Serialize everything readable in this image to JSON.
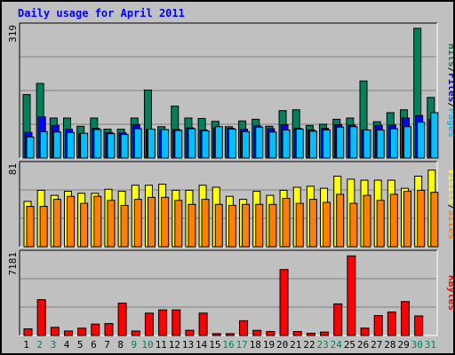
{
  "title": "Daily usage for April 2011",
  "colors": {
    "hits": "#00805c",
    "files": "#0000ff",
    "pages": "#00c0ff",
    "visits": "#ffff00",
    "sites": "#ff8000",
    "kbytes": "#ff0000",
    "weekday": "#000000",
    "weekend": "#00805c"
  },
  "chart_data": [
    {
      "type": "bar",
      "panel": "hits-files-pages",
      "ymax_label": "319",
      "ylim": [
        0,
        319
      ],
      "categories": [
        "1",
        "2",
        "3",
        "4",
        "5",
        "6",
        "7",
        "8",
        "9",
        "10",
        "11",
        "12",
        "13",
        "14",
        "15",
        "16",
        "17",
        "18",
        "19",
        "20",
        "21",
        "22",
        "23",
        "24",
        "25",
        "26",
        "27",
        "28",
        "29",
        "30",
        "31"
      ],
      "weekend_days": [
        "2",
        "3",
        "9",
        "10",
        "16",
        "17",
        "23",
        "24",
        "30",
        "31"
      ],
      "series": [
        {
          "name": "Hits",
          "values": [
            154,
            181,
            97,
            97,
            77,
            97,
            70,
            70,
            97,
            165,
            76,
            126,
            97,
            96,
            89,
            76,
            90,
            94,
            77,
            115,
            117,
            79,
            82,
            94,
            97,
            187,
            88,
            110,
            117,
            315,
            147
          ]
        },
        {
          "name": "Files",
          "values": [
            62,
            100,
            79,
            70,
            59,
            72,
            62,
            61,
            81,
            70,
            69,
            69,
            73,
            68,
            73,
            72,
            70,
            78,
            71,
            81,
            72,
            68,
            72,
            81,
            80,
            68,
            79,
            80,
            97,
            103,
            94
          ]
        },
        {
          "name": "Pages",
          "values": [
            51,
            64,
            63,
            62,
            60,
            69,
            59,
            57,
            71,
            70,
            69,
            67,
            71,
            66,
            76,
            70,
            64,
            75,
            63,
            68,
            70,
            65,
            68,
            75,
            76,
            68,
            68,
            71,
            76,
            87,
            110
          ]
        }
      ],
      "vlabel": [
        "Pages",
        "Files",
        "Hits"
      ]
    },
    {
      "type": "bar",
      "panel": "visits-sites",
      "ymax_label": "81",
      "ylim": [
        0,
        81
      ],
      "categories": [
        "1",
        "2",
        "3",
        "4",
        "5",
        "6",
        "7",
        "8",
        "9",
        "10",
        "11",
        "12",
        "13",
        "14",
        "15",
        "16",
        "17",
        "18",
        "19",
        "20",
        "21",
        "22",
        "23",
        "24",
        "25",
        "26",
        "27",
        "28",
        "29",
        "30",
        "31"
      ],
      "series": [
        {
          "name": "Visits",
          "values": [
            45,
            56,
            51,
            55,
            53,
            53,
            57,
            55,
            61,
            61,
            62,
            56,
            56,
            61,
            59,
            50,
            47,
            55,
            51,
            56,
            59,
            60,
            58,
            70,
            67,
            66,
            66,
            66,
            58,
            70,
            76
          ]
        },
        {
          "name": "Sites",
          "values": [
            40,
            40,
            47,
            50,
            43,
            50,
            46,
            41,
            47,
            49,
            49,
            46,
            42,
            47,
            42,
            41,
            42,
            42,
            42,
            48,
            43,
            47,
            44,
            52,
            43,
            51,
            46,
            52,
            55,
            56,
            54
          ]
        }
      ],
      "vlabel": [
        "Sites",
        "Visits"
      ]
    },
    {
      "type": "bar",
      "panel": "kbytes",
      "ymax_label": "7181",
      "ylim": [
        0,
        7181
      ],
      "categories": [
        "1",
        "2",
        "3",
        "4",
        "5",
        "6",
        "7",
        "8",
        "9",
        "10",
        "11",
        "12",
        "13",
        "14",
        "15",
        "16",
        "17",
        "18",
        "19",
        "20",
        "21",
        "22",
        "23",
        "24",
        "25",
        "26",
        "27",
        "28",
        "29",
        "30",
        "31"
      ],
      "series": [
        {
          "name": "KBytes",
          "values": [
            586,
            3150,
            719,
            394,
            642,
            1000,
            1050,
            2846,
            394,
            1965,
            2250,
            2250,
            458,
            1970,
            162,
            160,
            1300,
            450,
            350,
            5800,
            350,
            200,
            300,
            2780,
            7000,
            650,
            1750,
            2060,
            2980,
            1720,
            0
          ]
        }
      ],
      "vlabel": [
        "KBytes"
      ]
    }
  ]
}
